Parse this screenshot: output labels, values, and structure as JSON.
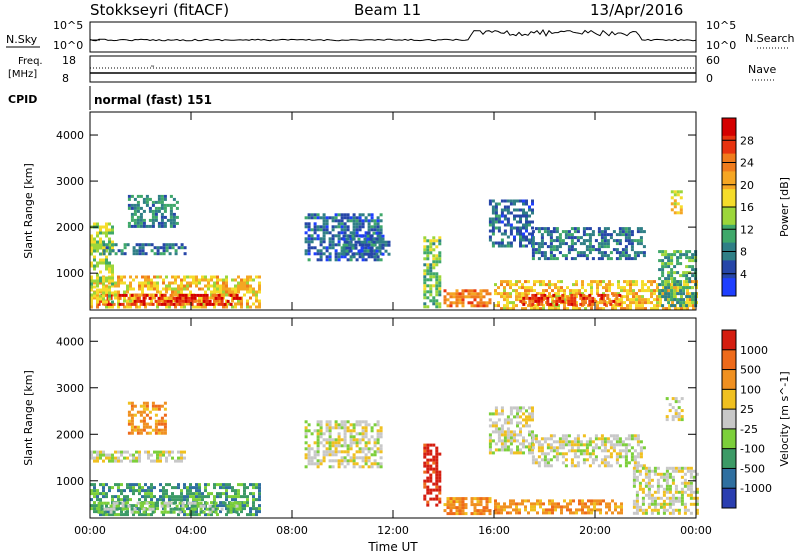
{
  "header": {
    "station": "Stokkseyri (fitACF)",
    "beam": "Beam 11",
    "date": "13/Apr/2016"
  },
  "top_panel": {
    "left_label": "N.Sky",
    "right_label": "N.Search",
    "left_ticks": [
      "10^5",
      "10^0"
    ],
    "right_ticks": [
      "10^5",
      "10^0"
    ]
  },
  "freq_panel": {
    "left_label_1": "Freq.",
    "left_label_2": "[MHz]",
    "right_label": "Nave",
    "left_ticks": [
      "18",
      "8"
    ],
    "right_ticks": [
      "60",
      "0"
    ]
  },
  "cpid_panel": {
    "label": "CPID",
    "value": "normal (fast) 151"
  },
  "colors": {
    "background": "#ffffff",
    "axis": "#000000",
    "ground_scatter": "#bdbdbd",
    "power_scale": [
      "#1f3fff",
      "#2646a8",
      "#2f7f86",
      "#3fa86a",
      "#9cd63a",
      "#f5dc2a",
      "#f5a623",
      "#f07c1c",
      "#e8330f",
      "#d40000"
    ],
    "velocity_scale": [
      "#2a3eb0",
      "#2f6fa0",
      "#3c9a66",
      "#7ccf3a",
      "#c8c8c8",
      "#f0c020",
      "#f09020",
      "#ee6a1a",
      "#d41d10"
    ]
  },
  "chart_data": [
    {
      "type": "heatmap",
      "panel": "power",
      "title": "",
      "xlabel": "Time UT",
      "ylabel": "Slant Range [km]",
      "x_ticks": [
        "00:00",
        "04:00",
        "08:00",
        "12:00",
        "16:00",
        "20:00",
        "00:00"
      ],
      "y_ticks": [
        "1000",
        "2000",
        "3000",
        "4000"
      ],
      "xlim_hours": [
        0,
        24
      ],
      "ylim_km": [
        200,
        4500
      ],
      "colorbar": {
        "label": "Power [dB]",
        "ticks": [
          "28",
          "24",
          "20",
          "16",
          "12",
          "8",
          "4"
        ],
        "range": [
          0,
          30
        ]
      },
      "regions": [
        {
          "t0": 0.0,
          "t1": 6.7,
          "r0": 250,
          "r1": 950,
          "level": 18
        },
        {
          "t0": 0.3,
          "t1": 6.0,
          "r0": 300,
          "r1": 550,
          "level": 27
        },
        {
          "t0": 0.0,
          "t1": 0.9,
          "r0": 400,
          "r1": 2100,
          "level": 14
        },
        {
          "t0": 0.5,
          "t1": 3.8,
          "r0": 1450,
          "r1": 1650,
          "level": 7
        },
        {
          "t0": 1.5,
          "t1": 3.5,
          "r0": 2000,
          "r1": 2700,
          "level": 8
        },
        {
          "t0": 8.5,
          "t1": 11.5,
          "r0": 1300,
          "r1": 2300,
          "level": 6
        },
        {
          "t0": 10.0,
          "t1": 11.8,
          "r0": 1400,
          "r1": 1900,
          "level": 6
        },
        {
          "t0": 13.2,
          "t1": 13.8,
          "r0": 300,
          "r1": 1800,
          "level": 12
        },
        {
          "t0": 14.0,
          "t1": 15.8,
          "r0": 300,
          "r1": 650,
          "level": 22
        },
        {
          "t0": 15.8,
          "t1": 17.5,
          "r0": 1600,
          "r1": 2600,
          "level": 6
        },
        {
          "t0": 16.0,
          "t1": 24.0,
          "r0": 250,
          "r1": 850,
          "level": 18
        },
        {
          "t0": 17.0,
          "t1": 21.0,
          "r0": 300,
          "r1": 550,
          "level": 25
        },
        {
          "t0": 17.5,
          "t1": 22.0,
          "r0": 1300,
          "r1": 2000,
          "level": 7
        },
        {
          "t0": 22.5,
          "t1": 24.0,
          "r0": 300,
          "r1": 1500,
          "level": 10
        },
        {
          "t0": 23.0,
          "t1": 23.4,
          "r0": 2300,
          "r1": 2800,
          "level": 16
        }
      ]
    },
    {
      "type": "heatmap",
      "panel": "velocity",
      "title": "",
      "xlabel": "Time UT",
      "ylabel": "Slant Range [km]",
      "x_ticks": [
        "00:00",
        "04:00",
        "08:00",
        "12:00",
        "16:00",
        "20:00",
        "00:00"
      ],
      "y_ticks": [
        "1000",
        "2000",
        "3000",
        "4000"
      ],
      "xlim_hours": [
        0,
        24
      ],
      "ylim_km": [
        200,
        4500
      ],
      "colorbar": {
        "label": "Velocity [m s^-1]",
        "ticks": [
          "1000",
          "500",
          "100",
          "25",
          "-25",
          "-100",
          "-500",
          "-1000"
        ],
        "range": [
          -1200,
          1200
        ]
      },
      "regions": [
        {
          "t0": 0.0,
          "t1": 6.7,
          "r0": 250,
          "r1": 950,
          "class": 2
        },
        {
          "t0": 0.3,
          "t1": 6.0,
          "r0": 300,
          "r1": 550,
          "class": 3
        },
        {
          "t0": 0.0,
          "t1": 3.8,
          "r0": 1450,
          "r1": 1650,
          "class": 4
        },
        {
          "t0": 1.5,
          "t1": 3.0,
          "r0": 2000,
          "r1": 2700,
          "class": 6
        },
        {
          "t0": 8.5,
          "t1": 11.5,
          "r0": 1300,
          "r1": 2300,
          "class": 4
        },
        {
          "t0": 13.2,
          "t1": 13.8,
          "r0": 500,
          "r1": 1800,
          "class": 8
        },
        {
          "t0": 14.0,
          "t1": 15.8,
          "r0": 300,
          "r1": 650,
          "class": 6
        },
        {
          "t0": 15.8,
          "t1": 17.5,
          "r0": 1600,
          "r1": 2600,
          "class": 4
        },
        {
          "t0": 16.0,
          "t1": 21.0,
          "r0": 300,
          "r1": 600,
          "class": 6
        },
        {
          "t0": 17.5,
          "t1": 22.0,
          "r0": 1300,
          "r1": 2000,
          "class": 4
        },
        {
          "t0": 21.5,
          "t1": 24.0,
          "r0": 300,
          "r1": 1300,
          "class": 4
        },
        {
          "t0": 22.8,
          "t1": 23.4,
          "r0": 2300,
          "r1": 2800,
          "class": 4
        }
      ]
    }
  ]
}
